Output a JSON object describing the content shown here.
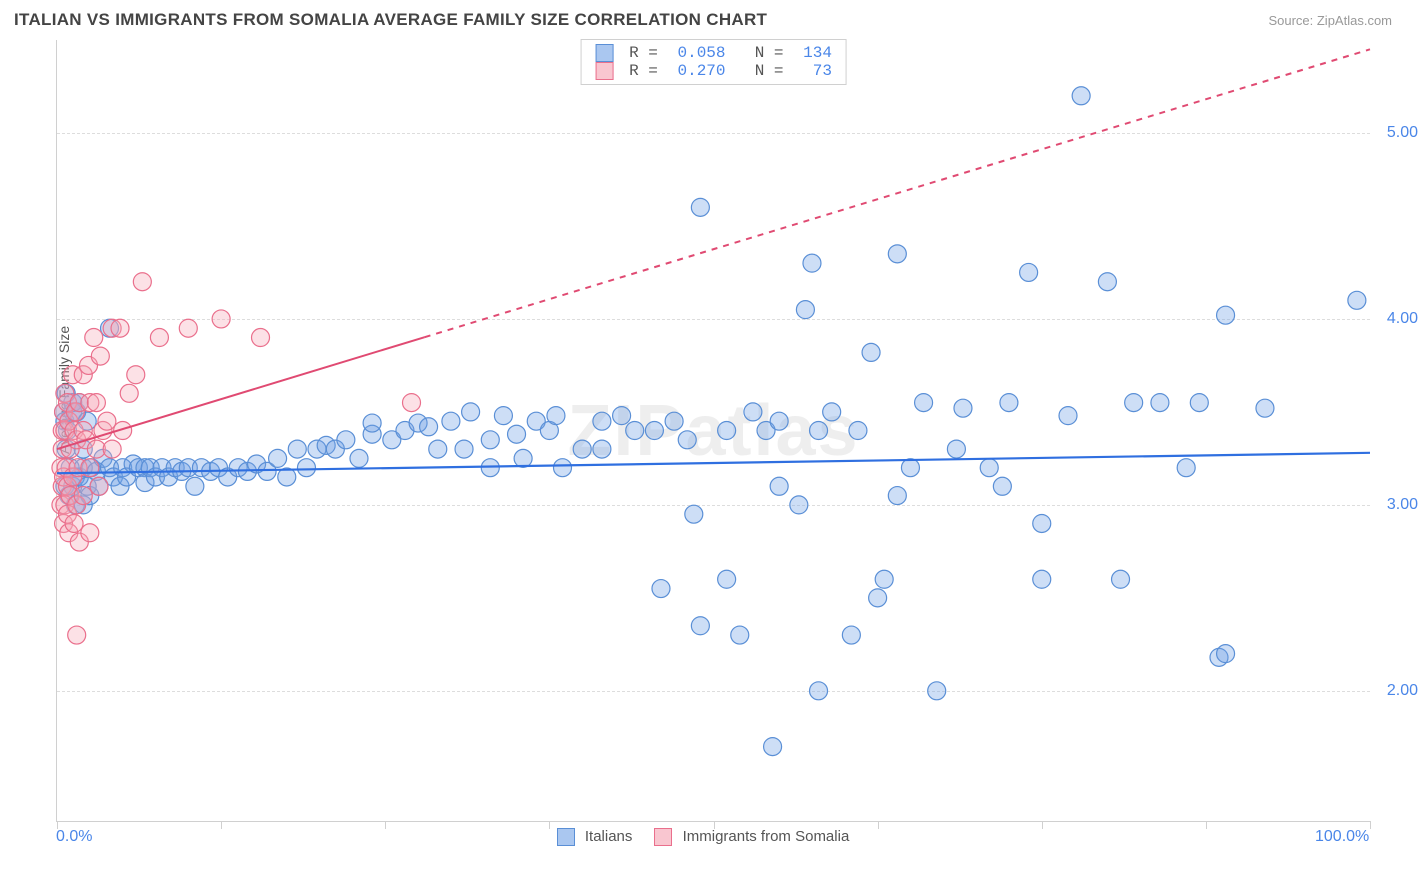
{
  "title": "ITALIAN VS IMMIGRANTS FROM SOMALIA AVERAGE FAMILY SIZE CORRELATION CHART",
  "source": "Source: ZipAtlas.com",
  "watermark": "ZIPatlas",
  "chart": {
    "type": "scatter",
    "ylabel": "Average Family Size",
    "xlim": [
      0,
      100
    ],
    "ylim": [
      1.3,
      5.5
    ],
    "ytick_values": [
      2.0,
      3.0,
      4.0,
      5.0
    ],
    "ytick_labels": [
      "2.00",
      "3.00",
      "4.00",
      "5.00"
    ],
    "xtick_positions": [
      0,
      12.5,
      25,
      37.5,
      50,
      62.5,
      75,
      87.5,
      100
    ],
    "xend_left": "0.0%",
    "xend_right": "100.0%",
    "grid_color": "#dddddd",
    "background_color": "#ffffff",
    "marker_radius": 9,
    "marker_fill_opacity": 0.35,
    "marker_stroke_width": 1.2,
    "series": [
      {
        "name": "Italians",
        "color": "#6fa1e6",
        "stroke": "#5a8fd6",
        "trend_color": "#2f6fe0",
        "trend_width": 2.2,
        "trend_solid_until_x": 100,
        "trend_y_start": 3.17,
        "trend_y_end": 3.28,
        "R": "0.058",
        "N": "134",
        "points": [
          [
            0.5,
            3.5
          ],
          [
            0.6,
            3.45
          ],
          [
            0.7,
            3.3
          ],
          [
            0.7,
            3.6
          ],
          [
            0.6,
            3.1
          ],
          [
            0.8,
            3.4
          ],
          [
            0.9,
            3.05
          ],
          [
            1.0,
            3.2
          ],
          [
            1.2,
            3.1
          ],
          [
            1.2,
            3.5
          ],
          [
            1.2,
            3.55
          ],
          [
            1.4,
            3.0
          ],
          [
            1.4,
            3.15
          ],
          [
            1.5,
            3.5
          ],
          [
            1.7,
            3.15
          ],
          [
            1.7,
            3.55
          ],
          [
            2.0,
            3.2
          ],
          [
            2.0,
            3.0
          ],
          [
            2.0,
            3.3
          ],
          [
            2.3,
            3.1
          ],
          [
            2.3,
            3.45
          ],
          [
            2.5,
            3.05
          ],
          [
            2.6,
            3.2
          ],
          [
            3.0,
            3.18
          ],
          [
            3.2,
            3.1
          ],
          [
            3.5,
            3.25
          ],
          [
            4.0,
            3.2
          ],
          [
            4.0,
            3.95
          ],
          [
            4.3,
            3.15
          ],
          [
            4.8,
            3.1
          ],
          [
            5.0,
            3.2
          ],
          [
            5.3,
            3.15
          ],
          [
            5.8,
            3.22
          ],
          [
            6.2,
            3.2
          ],
          [
            6.7,
            3.2
          ],
          [
            6.7,
            3.12
          ],
          [
            7.1,
            3.2
          ],
          [
            7.5,
            3.15
          ],
          [
            8.0,
            3.2
          ],
          [
            8.5,
            3.15
          ],
          [
            9.0,
            3.2
          ],
          [
            9.5,
            3.18
          ],
          [
            10.0,
            3.2
          ],
          [
            10.5,
            3.1
          ],
          [
            11.0,
            3.2
          ],
          [
            11.7,
            3.18
          ],
          [
            12.3,
            3.2
          ],
          [
            13.0,
            3.15
          ],
          [
            13.8,
            3.2
          ],
          [
            14.5,
            3.18
          ],
          [
            15.2,
            3.22
          ],
          [
            16.0,
            3.18
          ],
          [
            16.8,
            3.25
          ],
          [
            17.5,
            3.15
          ],
          [
            18.3,
            3.3
          ],
          [
            19.0,
            3.2
          ],
          [
            19.8,
            3.3
          ],
          [
            20.5,
            3.32
          ],
          [
            21.2,
            3.3
          ],
          [
            22.0,
            3.35
          ],
          [
            23.0,
            3.25
          ],
          [
            24.0,
            3.38
          ],
          [
            24.0,
            3.44
          ],
          [
            25.5,
            3.35
          ],
          [
            26.5,
            3.4
          ],
          [
            27.5,
            3.44
          ],
          [
            28.3,
            3.42
          ],
          [
            29.0,
            3.3
          ],
          [
            30.0,
            3.45
          ],
          [
            31.0,
            3.3
          ],
          [
            31.5,
            3.5
          ],
          [
            33.0,
            3.35
          ],
          [
            33.0,
            3.2
          ],
          [
            34.0,
            3.48
          ],
          [
            35.0,
            3.38
          ],
          [
            35.5,
            3.25
          ],
          [
            36.5,
            3.45
          ],
          [
            37.5,
            3.4
          ],
          [
            38.0,
            3.48
          ],
          [
            38.5,
            3.2
          ],
          [
            40.0,
            3.3
          ],
          [
            41.5,
            3.3
          ],
          [
            41.5,
            3.45
          ],
          [
            43.0,
            3.48
          ],
          [
            44.0,
            3.4
          ],
          [
            45.5,
            3.4
          ],
          [
            46.0,
            2.55
          ],
          [
            47.0,
            3.45
          ],
          [
            48.0,
            3.35
          ],
          [
            48.5,
            2.95
          ],
          [
            49.0,
            2.35
          ],
          [
            49.0,
            4.6
          ],
          [
            51.0,
            3.4
          ],
          [
            51.0,
            2.6
          ],
          [
            52.0,
            2.3
          ],
          [
            53.0,
            3.5
          ],
          [
            54.0,
            3.4
          ],
          [
            54.5,
            1.7
          ],
          [
            55.0,
            3.45
          ],
          [
            55.0,
            3.1
          ],
          [
            56.5,
            3.0
          ],
          [
            57.0,
            4.05
          ],
          [
            57.5,
            4.3
          ],
          [
            58.0,
            3.4
          ],
          [
            58.0,
            2.0
          ],
          [
            59.0,
            3.5
          ],
          [
            61.0,
            3.4
          ],
          [
            60.5,
            2.3
          ],
          [
            62.0,
            3.82
          ],
          [
            62.5,
            2.5
          ],
          [
            63.0,
            2.6
          ],
          [
            64.0,
            3.05
          ],
          [
            64.0,
            4.35
          ],
          [
            65.0,
            3.2
          ],
          [
            66.0,
            3.55
          ],
          [
            67.0,
            2.0
          ],
          [
            68.5,
            3.3
          ],
          [
            69.0,
            3.52
          ],
          [
            71.0,
            3.2
          ],
          [
            72.0,
            3.1
          ],
          [
            72.5,
            3.55
          ],
          [
            74.0,
            4.25
          ],
          [
            75.0,
            2.6
          ],
          [
            75.0,
            2.9
          ],
          [
            77.0,
            3.48
          ],
          [
            78.0,
            5.2
          ],
          [
            80.0,
            4.2
          ],
          [
            81.0,
            2.6
          ],
          [
            82.0,
            3.55
          ],
          [
            84.0,
            3.55
          ],
          [
            86.0,
            3.2
          ],
          [
            87.0,
            3.55
          ],
          [
            88.5,
            2.18
          ],
          [
            89.0,
            2.2
          ],
          [
            89.0,
            4.02
          ],
          [
            92.0,
            3.52
          ],
          [
            99.0,
            4.1
          ]
        ]
      },
      {
        "name": "Immigrants from Somalia",
        "color": "#f7a8b8",
        "stroke": "#ea6f8c",
        "trend_color": "#e04a72",
        "trend_width": 2,
        "trend_solid_until_x": 28,
        "trend_y_start": 3.3,
        "trend_y_end": 5.45,
        "R": "0.270",
        "N": "73",
        "points": [
          [
            0.3,
            3.0
          ],
          [
            0.3,
            3.2
          ],
          [
            0.4,
            3.3
          ],
          [
            0.4,
            3.4
          ],
          [
            0.4,
            3.1
          ],
          [
            0.5,
            3.5
          ],
          [
            0.5,
            2.9
          ],
          [
            0.5,
            3.15
          ],
          [
            0.6,
            3.6
          ],
          [
            0.6,
            3.0
          ],
          [
            0.6,
            3.4
          ],
          [
            0.7,
            3.2
          ],
          [
            0.8,
            2.95
          ],
          [
            0.8,
            3.55
          ],
          [
            0.8,
            3.1
          ],
          [
            0.9,
            2.85
          ],
          [
            0.9,
            3.45
          ],
          [
            1.0,
            3.3
          ],
          [
            1.0,
            3.05
          ],
          [
            1.2,
            3.7
          ],
          [
            1.2,
            3.15
          ],
          [
            1.3,
            3.4
          ],
          [
            1.3,
            2.9
          ],
          [
            1.4,
            3.5
          ],
          [
            1.5,
            3.0
          ],
          [
            1.5,
            3.35
          ],
          [
            1.6,
            3.2
          ],
          [
            1.7,
            2.8
          ],
          [
            1.7,
            3.55
          ],
          [
            2.0,
            3.7
          ],
          [
            2.0,
            3.05
          ],
          [
            2.0,
            3.4
          ],
          [
            2.2,
            3.35
          ],
          [
            2.4,
            3.75
          ],
          [
            2.5,
            3.2
          ],
          [
            2.5,
            2.85
          ],
          [
            2.5,
            3.55
          ],
          [
            2.8,
            3.9
          ],
          [
            3.0,
            3.3
          ],
          [
            3.0,
            3.55
          ],
          [
            3.2,
            3.1
          ],
          [
            1.5,
            2.3
          ],
          [
            3.3,
            3.8
          ],
          [
            3.5,
            3.4
          ],
          [
            3.8,
            3.45
          ],
          [
            4.2,
            3.95
          ],
          [
            4.2,
            3.3
          ],
          [
            4.8,
            3.95
          ],
          [
            5.0,
            3.4
          ],
          [
            5.5,
            3.6
          ],
          [
            6.0,
            3.7
          ],
          [
            6.5,
            4.2
          ],
          [
            7.8,
            3.9
          ],
          [
            10.0,
            3.95
          ],
          [
            12.5,
            4.0
          ],
          [
            15.5,
            3.9
          ],
          [
            27.0,
            3.55
          ]
        ]
      }
    ],
    "bottom_legend": [
      {
        "label": "Italians",
        "fill": "#aac7f0",
        "border": "#5a8fd6"
      },
      {
        "label": "Immigrants from Somalia",
        "fill": "#f9c6d0",
        "border": "#ea6f8c"
      }
    ]
  }
}
